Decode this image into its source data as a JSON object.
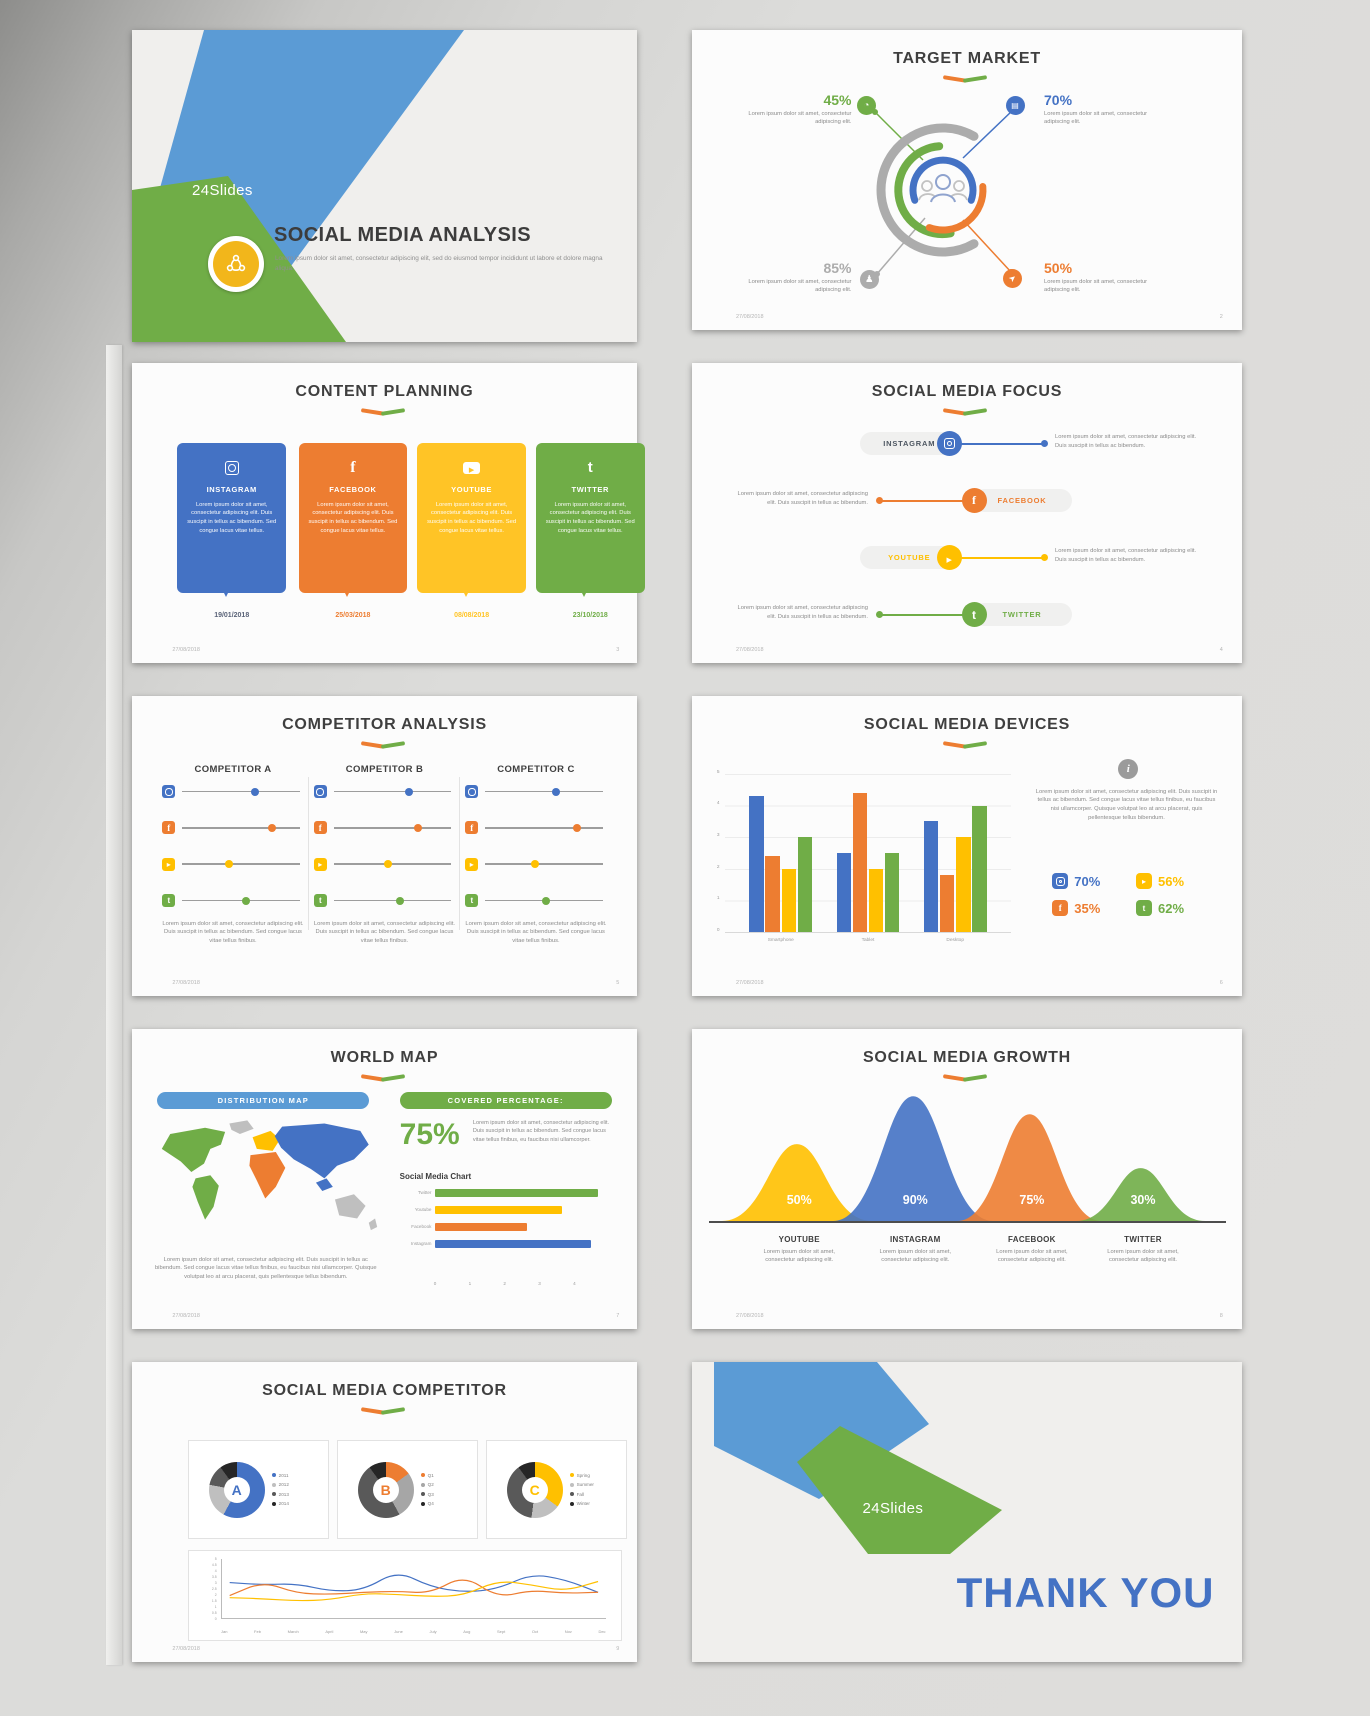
{
  "footer": {
    "date": "27/08/2018"
  },
  "brand": {
    "blue": "#4472C4",
    "orange": "#ED7D31",
    "yellow": "#FFC000",
    "green": "#70AD47",
    "gray": "#A6A6A6"
  },
  "s1": {
    "logo": "24Slides",
    "title": "SOCIAL MEDIA ANALYSIS",
    "subtitle": "Lorem ipsum dolor sit amet, consectetur adipiscing elit, sed do eiusmod tempor incididunt ut labore et dolore magna aliqua."
  },
  "s2": {
    "title": "TARGET MARKET",
    "page_num": "2",
    "callouts": [
      {
        "pct": "45%",
        "color": "#70AD47",
        "icon": "pie-chart",
        "text": "Lorem ipsum dolor sit amet, consectetur adipiscing elit."
      },
      {
        "pct": "70%",
        "color": "#4472C4",
        "icon": "briefcase",
        "text": "Lorem ipsum dolor sit amet, consectetur adipiscing elit."
      },
      {
        "pct": "85%",
        "color": "#ACACAC",
        "icon": "person",
        "text": "Lorem ipsum dolor sit amet, consectetur adipiscing elit."
      },
      {
        "pct": "50%",
        "color": "#ED7D31",
        "icon": "cursor",
        "text": "Lorem ipsum dolor sit amet, consectetur adipiscing elit."
      }
    ]
  },
  "s3": {
    "title": "CONTENT PLANNING",
    "page_num": "3",
    "cards": [
      {
        "name": "INSTAGRAM",
        "color": "#4472C4",
        "date": "19/01/2018",
        "date_color": "#5A6378",
        "text": "Lorem ipsum dolor sit amet, consectetur adipiscing elit. Duis suscipit in tellus ac bibendum. Sed congue lacus vitae tellus."
      },
      {
        "name": "FACEBOOK",
        "color": "#ED7D31",
        "date": "25/03/2018",
        "date_color": "#ED7D31",
        "text": "Lorem ipsum dolor sit amet, consectetur adipiscing elit. Duis suscipit in tellus ac bibendum. Sed congue lacus vitae tellus."
      },
      {
        "name": "YOUTUBE",
        "color": "#FFC426",
        "date": "08/08/2018",
        "date_color": "#FFC426",
        "text": "Lorem ipsum dolor sit amet, consectetur adipiscing elit. Duis suscipit in tellus ac bibendum. Sed congue lacus vitae tellus."
      },
      {
        "name": "TWITTER",
        "color": "#70AD47",
        "date": "23/10/2018",
        "date_color": "#70AD47",
        "text": "Lorem ipsum dolor sit amet, consectetur adipiscing elit. Duis suscipit in tellus ac bibendum. Sed congue lacus vitae tellus."
      }
    ]
  },
  "s4": {
    "title": "SOCIAL MEDIA FOCUS",
    "page_num": "4",
    "rows": [
      {
        "name": "INSTAGRAM",
        "color": "#4472C4",
        "label_color": "#4d5661",
        "text": "Lorem ipsum dolor sit amet, consectetur adipiscing elit. Duis suscipit in tellus ac bibendum."
      },
      {
        "name": "FACEBOOK",
        "color": "#ED7D31",
        "label_color": "#ED7D31",
        "text": "Lorem ipsum dolor sit amet, consectetur adipiscing elit. Duis suscipit in tellus ac bibendum."
      },
      {
        "name": "YOUTUBE",
        "color": "#FFC000",
        "label_color": "#FFC000",
        "text": "Lorem ipsum dolor sit amet, consectetur adipiscing elit. Duis suscipit in tellus ac bibendum."
      },
      {
        "name": "TWITTER",
        "color": "#70AD47",
        "label_color": "#70AD47",
        "text": "Lorem ipsum dolor sit amet, consectetur adipiscing elit. Duis suscipit in tellus ac bibendum."
      }
    ]
  },
  "s5": {
    "title": "COMPETITOR ANALYSIS",
    "page_num": "5",
    "slider_colors": [
      "#4472C4",
      "#ED7D31",
      "#FFC000",
      "#70AD47"
    ],
    "icons": [
      "mig-ig",
      "mig-fb",
      "mig-yt",
      "mig-tw"
    ],
    "columns": [
      {
        "name": "COMPETITOR A",
        "sliders": [
          "62%",
          "76%",
          "40%",
          "54%"
        ],
        "text": "Lorem ipsum dolor sit amet, consectetur adipiscing elit. Duis suscipit in tellus ac bibendum. Sed congue lacus vitae tellus finibus."
      },
      {
        "name": "COMPETITOR B",
        "sliders": [
          "64%",
          "72%",
          "46%",
          "56%"
        ],
        "text": "Lorem ipsum dolor sit amet, consectetur adipiscing elit. Duis suscipit in tellus ac bibendum. Sed congue lacus vitae tellus finibus."
      },
      {
        "name": "COMPETITOR C",
        "sliders": [
          "60%",
          "78%",
          "42%",
          "52%"
        ],
        "text": "Lorem ipsum dolor sit amet, consectetur adipiscing elit. Duis suscipit in tellus ac bibendum. Sed congue lacus vitae tellus finibus."
      }
    ]
  },
  "s6": {
    "title": "SOCIAL MEDIA DEVICES",
    "page_num": "6",
    "info_text": "Lorem ipsum dolor sit amet, consectetur adipiscing elit. Duis suscipit in tellus ac bibendum. Sed congue lacus vitae tellus finibus, eu faucibus nisi ullamcorper. Quisque volutpat leo at arcu placerat, quis pellentesque tellus bibendum.",
    "stats": [
      {
        "platform": "instagram",
        "pct": "70%",
        "color": "#4472C4"
      },
      {
        "platform": "youtube",
        "pct": "56%",
        "color": "#FFC000"
      },
      {
        "platform": "facebook",
        "pct": "35%",
        "color": "#ED7D31"
      },
      {
        "platform": "twitter",
        "pct": "62%",
        "color": "#70AD47"
      }
    ]
  },
  "s7": {
    "title": "WORLD MAP",
    "page_num": "7",
    "pill_left": "DISTRIBUTION MAP",
    "pill_right": "COVERED PERCENTAGE:",
    "big_pct": "75%",
    "right_text": "Lorem ipsum dolor sit amet, consectetur adipiscing elit. Duis suscipit in tellus ac bibendum. Sed congue lacus vitae tellus finibus, eu faucibus nisi ullamcorper.",
    "chart_title": "Social Media Chart",
    "bottom_text": "Lorem ipsum dolor sit amet, consectetur adipiscing elit. Duis suscipit in tellus ac bibendum. Sed congue lacus vitae tellus finibus, eu faucibus nisi ullamcorper. Quisque volutpat leo at arcu placerat, quis pellentesque tellus bibendum."
  },
  "s8": {
    "title": "SOCIAL MEDIA GROWTH",
    "page_num": "8",
    "bells": [
      {
        "name": "YOUTUBE",
        "pct": "50%",
        "color": "#FFC000",
        "caption": "Lorem ipsum dolor sit amet, consectetur adipiscing elit."
      },
      {
        "name": "INSTAGRAM",
        "pct": "90%",
        "color": "#4472C4",
        "caption": "Lorem ipsum dolor sit amet, consectetur adipiscing elit."
      },
      {
        "name": "FACEBOOK",
        "pct": "75%",
        "color": "#ED7D31",
        "caption": "Lorem ipsum dolor sit amet, consectetur adipiscing elit."
      },
      {
        "name": "TWITTER",
        "pct": "30%",
        "color": "#70AD47",
        "caption": "Lorem ipsum dolor sit amet, consectetur adipiscing elit."
      }
    ]
  },
  "s9": {
    "title": "SOCIAL MEDIA COMPETITOR",
    "page_num": "9"
  },
  "s10": {
    "logo": "24Slides",
    "title": "THANK YOU"
  },
  "chart_data": [
    {
      "id": "devices",
      "type": "bar",
      "title": "SOCIAL MEDIA DEVICES",
      "categories": [
        "Smartphone",
        "Tablet",
        "Desktop"
      ],
      "series": [
        {
          "name": "instagram",
          "color": "#4472C4",
          "values": [
            4.3,
            2.5,
            3.5
          ]
        },
        {
          "name": "facebook",
          "color": "#ED7D31",
          "values": [
            2.4,
            4.4,
            1.8
          ]
        },
        {
          "name": "youtube",
          "color": "#FFC000",
          "values": [
            2.0,
            2.0,
            3.0
          ]
        },
        {
          "name": "twitter",
          "color": "#70AD47",
          "values": [
            3.0,
            2.5,
            4.0
          ]
        }
      ],
      "ylim": [
        0,
        5
      ],
      "yticks": [
        5,
        4,
        3,
        2,
        1,
        0
      ],
      "grid": true,
      "legend_position": "none"
    },
    {
      "id": "social_media_chart",
      "type": "bar",
      "orientation": "horizontal",
      "title": "Social Media Chart",
      "categories": [
        "Twitter",
        "Youtube",
        "Facebook",
        "Instagram"
      ],
      "values": [
        4.6,
        3.6,
        2.6,
        4.4
      ],
      "colors": [
        "#70AD47",
        "#FFC000",
        "#ED7D31",
        "#4472C4"
      ],
      "xlim": [
        0,
        5
      ],
      "xticks": [
        0,
        1,
        2,
        3,
        4
      ]
    },
    {
      "id": "growth_bells",
      "type": "area",
      "title": "SOCIAL MEDIA GROWTH",
      "categories": [
        "YOUTUBE",
        "INSTAGRAM",
        "FACEBOOK",
        "TWITTER"
      ],
      "values": [
        50,
        90,
        75,
        30
      ],
      "colors": [
        "#FFC000",
        "#4472C4",
        "#ED7D31",
        "#70AD47"
      ]
    },
    {
      "id": "donut_a",
      "type": "pie",
      "center_label": "A",
      "letter_color": "#4472C4",
      "legend": [
        "2011",
        "2012",
        "2013",
        "2014"
      ],
      "segments": [
        {
          "color": "#4472C4",
          "pct": 58
        },
        {
          "color": "#BFBFBF",
          "pct": 20
        },
        {
          "color": "#595959",
          "pct": 12
        },
        {
          "color": "#262626",
          "pct": 10
        }
      ]
    },
    {
      "id": "donut_b",
      "type": "pie",
      "center_label": "B",
      "letter_color": "#ED7D31",
      "legend": [
        "Q1",
        "Q2",
        "Q3",
        "Q4"
      ],
      "segments": [
        {
          "color": "#ED7D31",
          "pct": 15
        },
        {
          "color": "#A6A6A6",
          "pct": 27
        },
        {
          "color": "#595959",
          "pct": 48
        },
        {
          "color": "#262626",
          "pct": 10
        }
      ]
    },
    {
      "id": "donut_c",
      "type": "pie",
      "center_label": "C",
      "letter_color": "#FFC000",
      "legend": [
        "Spring",
        "Summer",
        "Fall",
        "Winter"
      ],
      "segments": [
        {
          "color": "#FFC000",
          "pct": 35
        },
        {
          "color": "#BFBFBF",
          "pct": 17
        },
        {
          "color": "#595959",
          "pct": 38
        },
        {
          "color": "#262626",
          "pct": 10
        }
      ]
    },
    {
      "id": "competitor_lines",
      "type": "line",
      "x": [
        "Jan",
        "Feb",
        "March",
        "April",
        "May",
        "June",
        "July",
        "Aug",
        "Sept",
        "Oct",
        "Nov",
        "Dec"
      ],
      "ylim": [
        0,
        5
      ],
      "yticks": [
        5,
        4.5,
        4,
        3.5,
        3,
        2.5,
        2,
        1.5,
        1,
        0.5,
        0
      ],
      "series": [
        {
          "color": "#4472C4",
          "values": [
            3.2,
            3.0,
            3.1,
            2.4,
            2.5,
            4.3,
            2.8,
            2.3,
            2.6,
            4.0,
            3.5,
            2.3
          ]
        },
        {
          "color": "#ED7D31",
          "values": [
            2.0,
            3.3,
            2.2,
            2.1,
            2.3,
            2.4,
            2.2,
            3.9,
            1.8,
            2.5,
            2.2,
            2.3
          ]
        },
        {
          "color": "#FFC000",
          "values": [
            1.8,
            1.7,
            1.5,
            1.6,
            2.2,
            2.1,
            1.9,
            2.0,
            3.4,
            3.0,
            2.4,
            3.3
          ]
        }
      ]
    }
  ]
}
